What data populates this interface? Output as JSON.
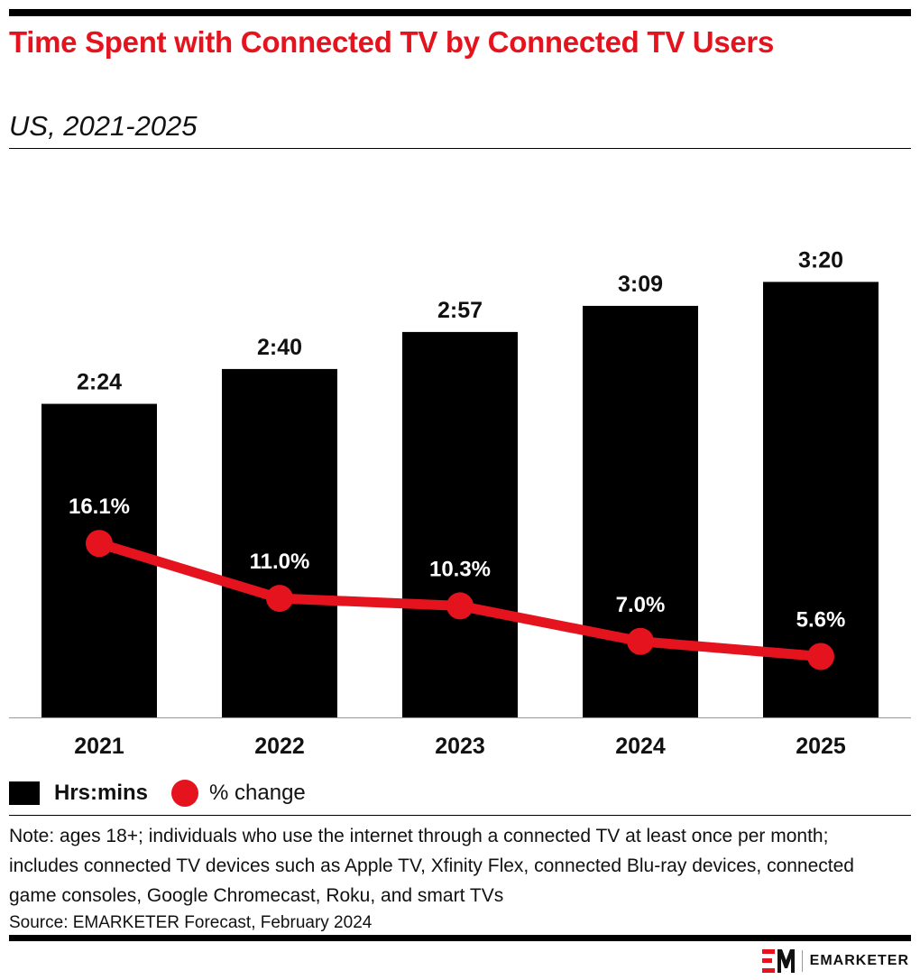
{
  "header": {
    "title": "Time Spent with Connected TV by Connected TV Users",
    "subtitle": "US, 2021-2025"
  },
  "colors": {
    "bar": "#000000",
    "line": "#e5131d",
    "title": "#e5131d"
  },
  "chart_data": {
    "type": "bar",
    "categories": [
      "2021",
      "2022",
      "2023",
      "2024",
      "2025"
    ],
    "series": [
      {
        "name": "Hrs:mins",
        "type": "bar",
        "values": [
          144,
          160,
          177,
          189,
          200
        ],
        "labels": [
          "2:24",
          "2:40",
          "2:57",
          "3:09",
          "3:20"
        ]
      },
      {
        "name": "% change",
        "type": "line",
        "values": [
          16.1,
          11.0,
          10.3,
          7.0,
          5.6
        ],
        "labels": [
          "16.1%",
          "11.0%",
          "10.3%",
          "7.0%",
          "5.6%"
        ]
      }
    ],
    "legend_position": "bottom-left",
    "grid": false
  },
  "legend": {
    "bar_label": "Hrs:mins",
    "line_label": "% change"
  },
  "footer": {
    "note": "Note: ages 18+; individuals who use the internet through a connected TV at least once per month; includes connected TV devices such as Apple TV, Xfinity Flex, connected Blu-ray devices, connected game consoles, Google Chromecast, Roku, and smart TVs",
    "source": "Source: EMARKETER Forecast, February 2024",
    "brand": "EMARKETER"
  }
}
